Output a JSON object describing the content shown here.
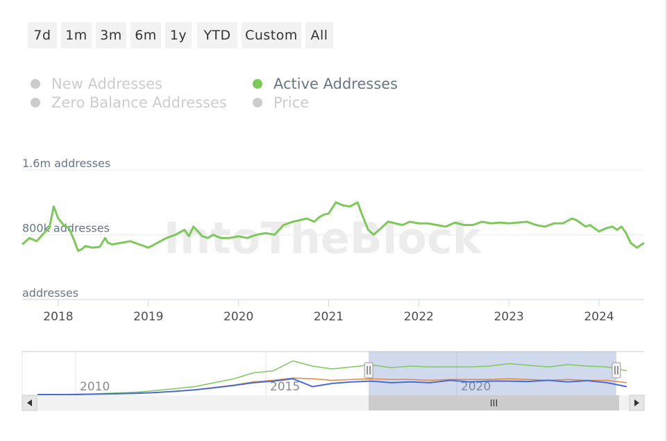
{
  "range_buttons": [
    "7d",
    "1m",
    "3m",
    "6m",
    "1y",
    "YTD",
    "Custom",
    "All"
  ],
  "legend": {
    "items": [
      {
        "label": "New Addresses",
        "active": false,
        "color": "#cccccc"
      },
      {
        "label": "Active Addresses",
        "active": true,
        "color": "#7cc95a"
      },
      {
        "label": "Zero Balance Addresses",
        "active": false,
        "color": "#cccccc"
      },
      {
        "label": "Price",
        "active": false,
        "color": "#cccccc"
      }
    ]
  },
  "watermark": "IntoTheBlock",
  "chart_data": {
    "type": "line",
    "title": "",
    "xlabel": "",
    "ylabel": "",
    "y_axis_labels": [
      "1.6m addresses",
      "800k addresses",
      "addresses"
    ],
    "x_tick_labels": [
      "2018",
      "2019",
      "2020",
      "2021",
      "2022",
      "2023",
      "2024"
    ],
    "ylim": [
      0,
      1600000
    ],
    "xlim": [
      2017.6,
      2024.5
    ],
    "grid": true,
    "series": [
      {
        "name": "Active Addresses",
        "color": "#7cc95a",
        "x": [
          2017.6,
          2017.68,
          2017.76,
          2017.84,
          2017.9,
          2017.95,
          2018.0,
          2018.06,
          2018.12,
          2018.18,
          2018.22,
          2018.26,
          2018.3,
          2018.38,
          2018.46,
          2018.52,
          2018.55,
          2018.6,
          2018.7,
          2018.8,
          2018.9,
          2019.0,
          2019.1,
          2019.2,
          2019.3,
          2019.4,
          2019.45,
          2019.5,
          2019.55,
          2019.6,
          2019.66,
          2019.72,
          2019.8,
          2019.9,
          2020.0,
          2020.1,
          2020.2,
          2020.3,
          2020.4,
          2020.45,
          2020.5,
          2020.55,
          2020.6,
          2020.68,
          2020.76,
          2020.84,
          2020.9,
          2020.95,
          2021.0,
          2021.08,
          2021.16,
          2021.24,
          2021.32,
          2021.38,
          2021.44,
          2021.5,
          2021.58,
          2021.66,
          2021.74,
          2021.82,
          2021.9,
          2022.0,
          2022.1,
          2022.2,
          2022.3,
          2022.4,
          2022.5,
          2022.6,
          2022.7,
          2022.8,
          2022.9,
          2023.0,
          2023.1,
          2023.2,
          2023.3,
          2023.4,
          2023.5,
          2023.6,
          2023.7,
          2023.75,
          2023.8,
          2023.85,
          2023.9,
          2024.0,
          2024.08,
          2024.15,
          2024.2,
          2024.25,
          2024.3,
          2024.35,
          2024.42,
          2024.5
        ],
        "y": [
          680000,
          760000,
          720000,
          820000,
          880000,
          1150000,
          1000000,
          920000,
          880000,
          720000,
          600000,
          620000,
          660000,
          640000,
          650000,
          760000,
          700000,
          680000,
          700000,
          720000,
          680000,
          640000,
          700000,
          760000,
          800000,
          860000,
          780000,
          900000,
          840000,
          780000,
          760000,
          800000,
          760000,
          760000,
          780000,
          760000,
          800000,
          820000,
          800000,
          860000,
          920000,
          940000,
          960000,
          980000,
          1000000,
          960000,
          1020000,
          1050000,
          1060000,
          1200000,
          1160000,
          1150000,
          1200000,
          1020000,
          860000,
          800000,
          880000,
          960000,
          940000,
          920000,
          960000,
          940000,
          940000,
          920000,
          900000,
          950000,
          920000,
          920000,
          960000,
          940000,
          950000,
          940000,
          950000,
          960000,
          920000,
          900000,
          940000,
          940000,
          1000000,
          980000,
          940000,
          900000,
          920000,
          840000,
          880000,
          900000,
          860000,
          900000,
          820000,
          700000,
          640000,
          700000
        ]
      }
    ]
  },
  "navigator": {
    "x_labels": [
      "2010",
      "2015",
      "2020"
    ],
    "series": [
      {
        "color": "#7cc95a",
        "y": [
          0,
          0,
          0.01,
          0.02,
          0.04,
          0.06,
          0.1,
          0.15,
          0.2,
          0.3,
          0.4,
          0.55,
          0.6,
          0.85,
          0.72,
          0.65,
          0.7,
          0.75,
          0.68,
          0.72,
          0.7,
          0.7,
          0.7,
          0.72,
          0.78,
          0.74,
          0.7,
          0.76,
          0.72,
          0.7,
          0.6
        ]
      },
      {
        "color": "#e0883c",
        "y": [
          0,
          0,
          0,
          0.01,
          0.02,
          0.03,
          0.05,
          0.08,
          0.12,
          0.18,
          0.24,
          0.32,
          0.36,
          0.42,
          0.4,
          0.36,
          0.38,
          0.4,
          0.38,
          0.38,
          0.36,
          0.38,
          0.38,
          0.38,
          0.4,
          0.38,
          0.36,
          0.38,
          0.36,
          0.36,
          0.3
        ]
      },
      {
        "color": "#4a6bd6",
        "y": [
          0,
          0,
          0,
          0.01,
          0.02,
          0.03,
          0.05,
          0.08,
          0.12,
          0.17,
          0.23,
          0.3,
          0.34,
          0.4,
          0.2,
          0.28,
          0.32,
          0.34,
          0.3,
          0.32,
          0.3,
          0.36,
          0.32,
          0.34,
          0.34,
          0.33,
          0.36,
          0.32,
          0.35,
          0.3,
          0.2
        ]
      }
    ],
    "selection_start_fraction": 0.56,
    "selection_end_fraction": 1.0,
    "scroll_grip": "III"
  }
}
